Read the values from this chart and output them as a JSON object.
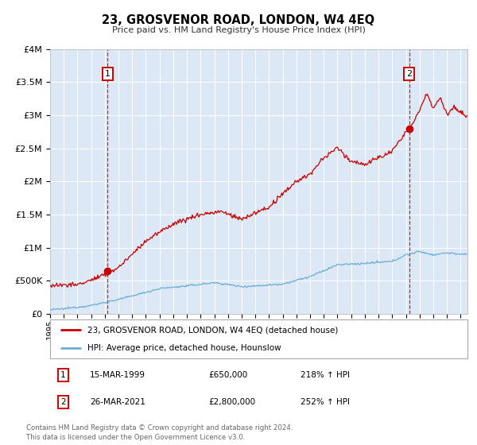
{
  "title": "23, GROSVENOR ROAD, LONDON, W4 4EQ",
  "subtitle": "Price paid vs. HM Land Registry's House Price Index (HPI)",
  "bg_color": "#dce8f5",
  "fig_bg_color": "#ffffff",
  "hpi_color": "#6baed6",
  "price_color": "#cc0000",
  "ylim": [
    0,
    4000000
  ],
  "xlim_start": 1995.0,
  "xlim_end": 2025.5,
  "transaction1_x": 1999.21,
  "transaction1_y": 650000,
  "transaction2_x": 2021.24,
  "transaction2_y": 2800000,
  "transaction1_date": "15-MAR-1999",
  "transaction1_price": "£650,000",
  "transaction1_hpi": "218% ↑ HPI",
  "transaction2_date": "26-MAR-2021",
  "transaction2_price": "£2,800,000",
  "transaction2_hpi": "252% ↑ HPI",
  "legend_address": "23, GROSVENOR ROAD, LONDON, W4 4EQ (detached house)",
  "legend_hpi": "HPI: Average price, detached house, Hounslow",
  "footer": "Contains HM Land Registry data © Crown copyright and database right 2024.\nThis data is licensed under the Open Government Licence v3.0.",
  "yticks": [
    0,
    500000,
    1000000,
    1500000,
    2000000,
    2500000,
    3000000,
    3500000,
    4000000
  ]
}
